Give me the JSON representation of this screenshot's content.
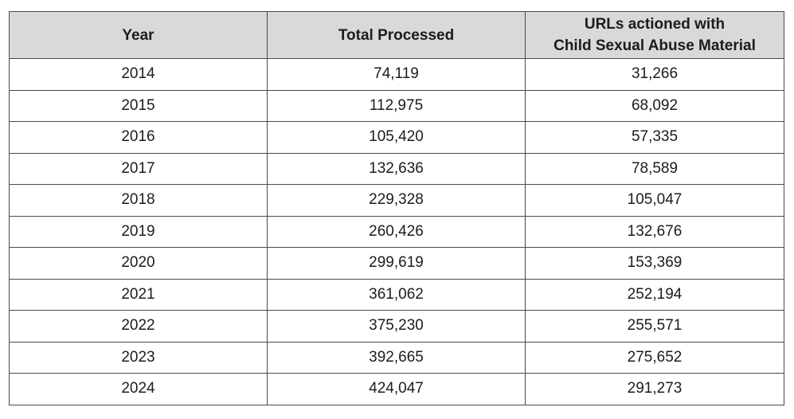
{
  "chart_data": {
    "type": "table",
    "columns": [
      {
        "label_lines": [
          "Year"
        ]
      },
      {
        "label_lines": [
          "Total Processed"
        ]
      },
      {
        "label_lines": [
          "URLs actioned with",
          "Child Sexual Abuse Material"
        ]
      }
    ],
    "rows": [
      [
        "2014",
        "74,119",
        "31,266"
      ],
      [
        "2015",
        "112,975",
        "68,092"
      ],
      [
        "2016",
        "105,420",
        "57,335"
      ],
      [
        "2017",
        "132,636",
        "78,589"
      ],
      [
        "2018",
        "229,328",
        "105,047"
      ],
      [
        "2019",
        "260,426",
        "132,676"
      ],
      [
        "2020",
        "299,619",
        "153,369"
      ],
      [
        "2021",
        "361,062",
        "252,194"
      ],
      [
        "2022",
        "375,230",
        "255,571"
      ],
      [
        "2023",
        "392,665",
        "275,652"
      ],
      [
        "2024",
        "424,047",
        "291,273"
      ]
    ],
    "colors": {
      "header_background": "#d9d9d9",
      "border": "#4a4a4a",
      "text": "#1c1c1c"
    }
  }
}
